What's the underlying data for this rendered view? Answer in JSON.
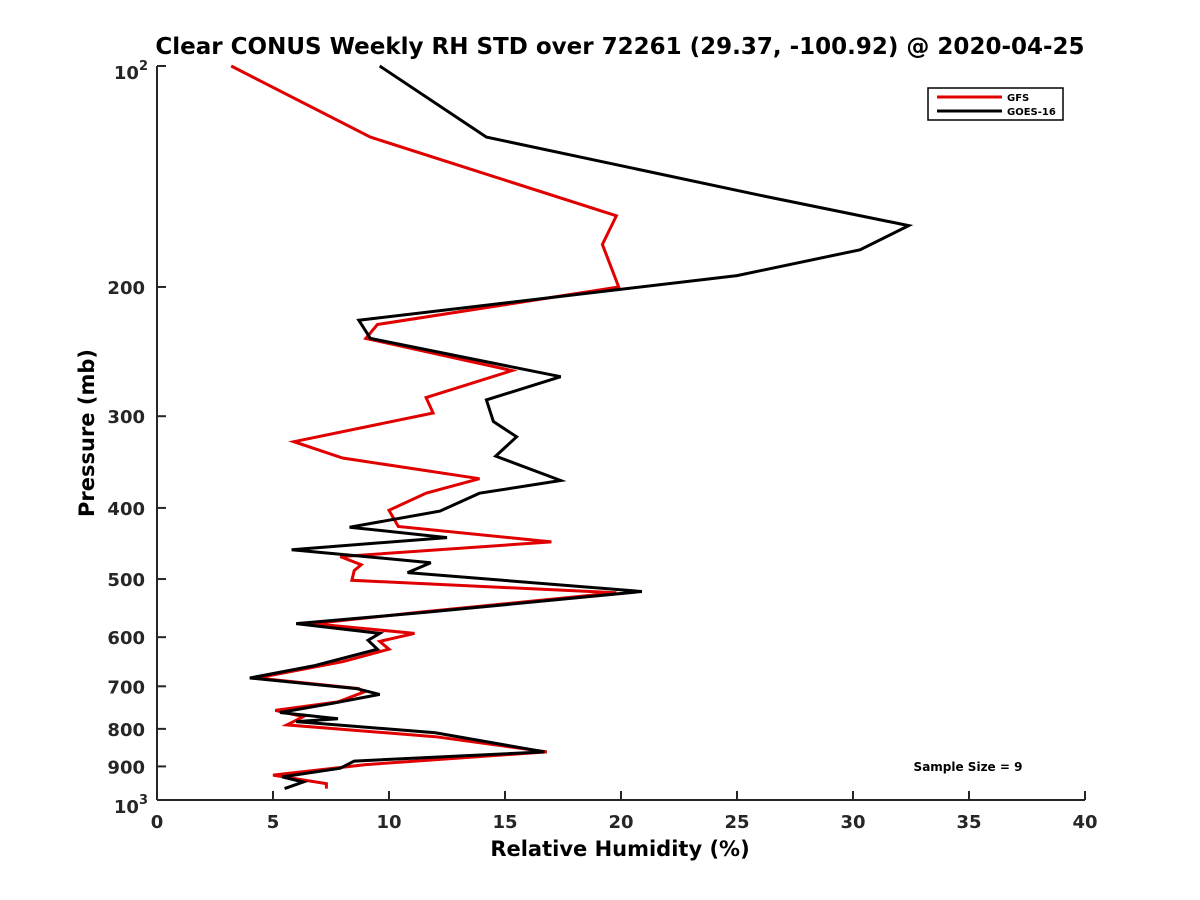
{
  "chart_data": {
    "type": "line",
    "title": "Clear CONUS Weekly RH STD over 72261 (29.37, -100.92) @ 2020-04-25",
    "xlabel": "Relative Humidity (%)",
    "ylabel": "Pressure (mb)",
    "xlim": [
      0,
      40
    ],
    "ylim": [
      100,
      1000
    ],
    "y_scale": "log",
    "y_reversed": true,
    "x_ticks": [
      "0",
      "5",
      "10",
      "15",
      "20",
      "25",
      "30",
      "35",
      "40"
    ],
    "y_ticks": [
      {
        "value": 100,
        "base": "10",
        "exp": "2"
      },
      {
        "value": 200,
        "label": "200"
      },
      {
        "value": 300,
        "label": "300"
      },
      {
        "value": 400,
        "label": "400"
      },
      {
        "value": 500,
        "label": "500"
      },
      {
        "value": 600,
        "label": "600"
      },
      {
        "value": 700,
        "label": "700"
      },
      {
        "value": 800,
        "label": "800"
      },
      {
        "value": 900,
        "label": "900"
      },
      {
        "value": 1000,
        "base": "10",
        "exp": "3"
      }
    ],
    "legend_position": "top-right",
    "annotation": "Sample Size = 9",
    "series": [
      {
        "name": "GFS",
        "color": "#e00000",
        "points": [
          [
            3.2,
            100
          ],
          [
            9.2,
            125
          ],
          [
            19.8,
            160
          ],
          [
            19.2,
            175
          ],
          [
            19.9,
            200
          ],
          [
            9.5,
            225
          ],
          [
            9.0,
            235
          ],
          [
            15.3,
            260
          ],
          [
            11.6,
            283
          ],
          [
            11.9,
            297
          ],
          [
            5.9,
            325
          ],
          [
            8.0,
            342
          ],
          [
            13.9,
            365
          ],
          [
            11.6,
            382
          ],
          [
            10.0,
            403
          ],
          [
            10.4,
            424
          ],
          [
            17.0,
            445
          ],
          [
            7.9,
            466
          ],
          [
            8.8,
            478
          ],
          [
            8.5,
            487
          ],
          [
            8.4,
            502
          ],
          [
            19.8,
            522
          ],
          [
            11.3,
            555
          ],
          [
            6.7,
            575
          ],
          [
            11.1,
            593
          ],
          [
            9.6,
            608
          ],
          [
            10.0,
            623
          ],
          [
            8.0,
            648
          ],
          [
            4.3,
            682
          ],
          [
            8.7,
            705
          ],
          [
            8.9,
            713
          ],
          [
            7.8,
            735
          ],
          [
            5.1,
            755
          ],
          [
            6.3,
            770
          ],
          [
            5.6,
            790
          ],
          [
            12.0,
            820
          ],
          [
            16.8,
            860
          ],
          [
            9.0,
            895
          ],
          [
            5.0,
            925
          ],
          [
            7.3,
            950
          ],
          [
            7.3,
            965
          ]
        ]
      },
      {
        "name": "GOES-16",
        "color": "#000000",
        "points": [
          [
            9.6,
            100
          ],
          [
            14.2,
            125
          ],
          [
            26.0,
            150
          ],
          [
            32.4,
            165
          ],
          [
            30.3,
            178
          ],
          [
            25.0,
            193
          ],
          [
            8.7,
            222
          ],
          [
            9.2,
            235
          ],
          [
            17.4,
            265
          ],
          [
            14.2,
            285
          ],
          [
            14.5,
            305
          ],
          [
            15.5,
            320
          ],
          [
            14.6,
            340
          ],
          [
            17.4,
            367
          ],
          [
            13.9,
            382
          ],
          [
            12.2,
            404
          ],
          [
            8.3,
            425
          ],
          [
            12.5,
            439
          ],
          [
            5.8,
            456
          ],
          [
            11.8,
            475
          ],
          [
            10.8,
            490
          ],
          [
            20.9,
            520
          ],
          [
            11.6,
            555
          ],
          [
            6.0,
            575
          ],
          [
            9.6,
            593
          ],
          [
            9.1,
            606
          ],
          [
            9.5,
            623
          ],
          [
            6.8,
            656
          ],
          [
            4.0,
            682
          ],
          [
            8.6,
            705
          ],
          [
            9.6,
            718
          ],
          [
            7.6,
            738
          ],
          [
            5.3,
            760
          ],
          [
            7.8,
            775
          ],
          [
            6.0,
            782
          ],
          [
            12.0,
            810
          ],
          [
            16.7,
            860
          ],
          [
            8.5,
            885
          ],
          [
            7.9,
            905
          ],
          [
            5.4,
            930
          ],
          [
            6.3,
            945
          ],
          [
            5.5,
            965
          ]
        ]
      }
    ]
  }
}
